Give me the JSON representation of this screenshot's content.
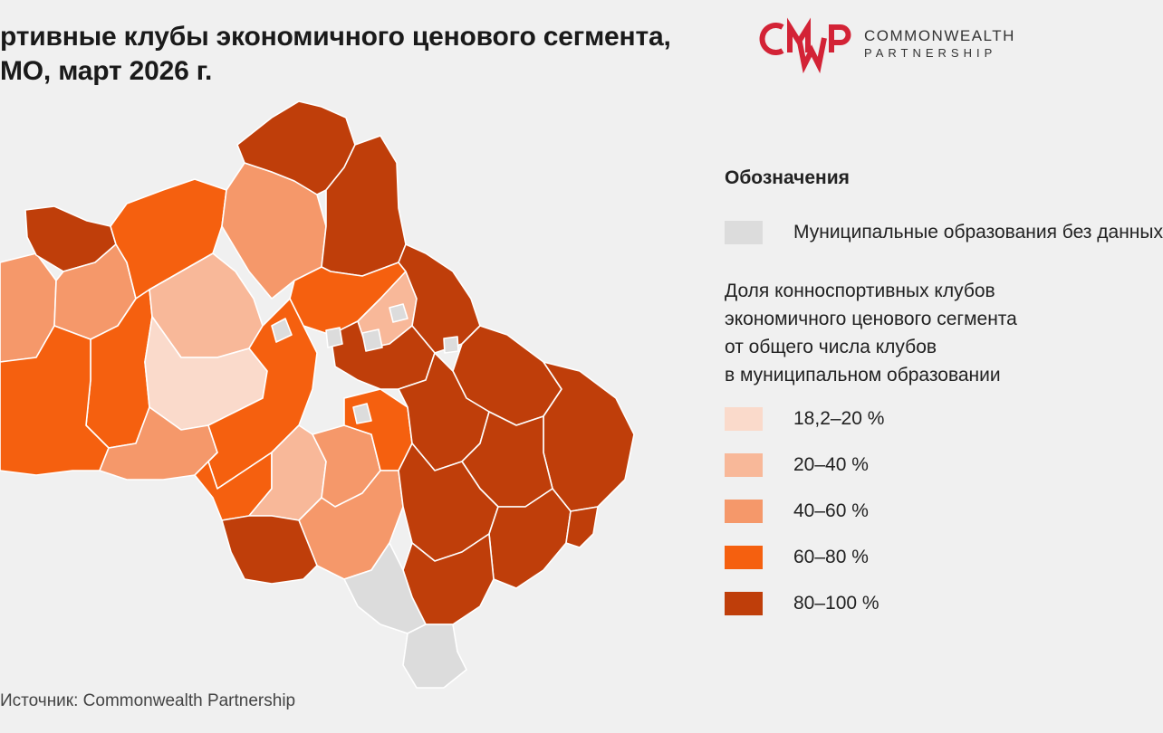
{
  "header": {
    "title_line1": "ртивные клубы экономичного ценового сегмента,",
    "title_line2": "МО, март 2026 г."
  },
  "logo": {
    "mark": "CMWP",
    "line1": "COMMONWEALTH",
    "line2": "PARTNERSHIP"
  },
  "legend": {
    "title": "Обозначения",
    "na_label": "Муниципальные образования без данных",
    "description_lines": [
      "Доля конноспортивных клубов",
      "экономичного ценового сегмента",
      "от общего числа клубов",
      "в муниципальном образовании"
    ],
    "items": [
      {
        "label": "18,2–20 %",
        "color": "#fadacb"
      },
      {
        "label": "20–40 %",
        "color": "#f8b899"
      },
      {
        "label": "40–60 %",
        "color": "#f5986a"
      },
      {
        "label": "60–80 %",
        "color": "#f5600f"
      },
      {
        "label": "80–100 %",
        "color": "#bf3e0a"
      }
    ],
    "na_color": "#dcdcdc"
  },
  "source": "Источник: Commonwealth Partnership",
  "colors": {
    "background": "#f0f0f0",
    "brand_red": "#d32336",
    "border": "#ffffff"
  }
}
